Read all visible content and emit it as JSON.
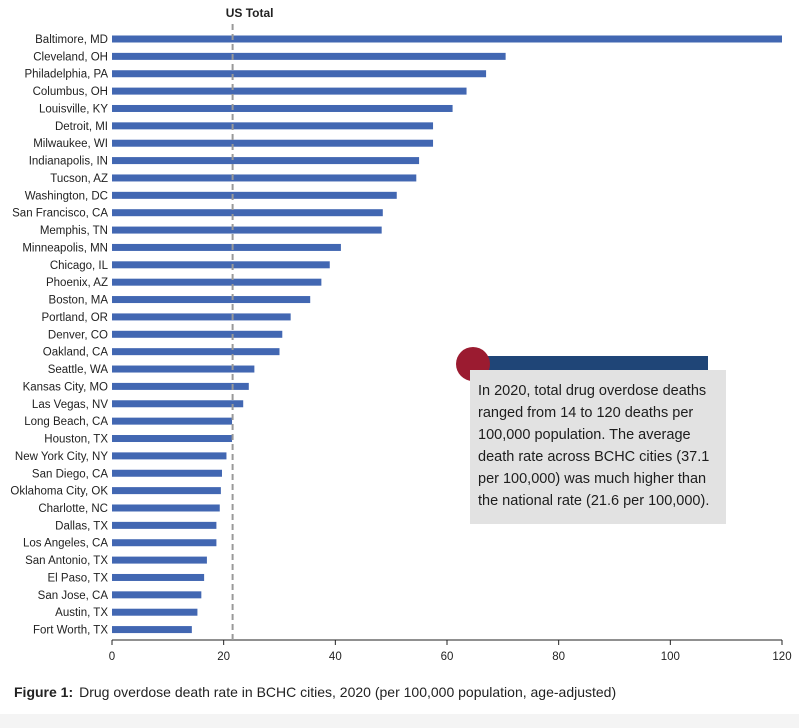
{
  "chart_data": {
    "type": "bar",
    "orientation": "horizontal",
    "categories": [
      "Baltimore, MD",
      "Cleveland, OH",
      "Philadelphia, PA",
      "Columbus, OH",
      "Louisville, KY",
      "Detroit, MI",
      "Milwaukee, WI",
      "Indianapolis, IN",
      "Tucson, AZ",
      "Washington, DC",
      "San Francisco, CA",
      "Memphis, TN",
      "Minneapolis, MN",
      "Chicago, IL",
      "Phoenix, AZ",
      "Boston, MA",
      "Portland, OR",
      "Denver, CO",
      "Oakland, CA",
      "Seattle, WA",
      "Kansas City, MO",
      "Las Vegas, NV",
      "Long Beach, CA",
      "Houston, TX",
      "New York City, NY",
      "San Diego, CA",
      "Oklahoma City, OK",
      "Charlotte, NC",
      "Dallas, TX",
      "Los Angeles, CA",
      "San Antonio, TX",
      "El Paso, TX",
      "San Jose, CA",
      "Austin, TX",
      "Fort Worth, TX"
    ],
    "values": [
      120,
      70.5,
      67,
      63.5,
      61,
      57.5,
      57.5,
      55,
      54.5,
      51,
      48.5,
      48.3,
      41,
      39,
      37.5,
      35.5,
      32,
      30.5,
      30,
      25.5,
      24.5,
      23.5,
      21.5,
      21.5,
      20.5,
      19.7,
      19.5,
      19.3,
      18.7,
      18.7,
      17,
      16.5,
      16,
      15.3,
      14.3
    ],
    "xlim": [
      0,
      120
    ],
    "xticks": [
      "0",
      "20",
      "40",
      "60",
      "80",
      "100",
      "120"
    ],
    "reference_line": {
      "label": "US Total",
      "value": 21.6
    },
    "bar_color": "#4267b2",
    "grid": false
  },
  "callout": {
    "text": "In 2020, total drug overdose deaths ranged from 14 to 120 deaths per 100,000 population. The average death rate across BCHC cities (37.1 per 100,000) was much higher than the national rate (21.6 per 100,000).",
    "accent_color": "#9b1b30",
    "bar_color": "#1f4577"
  },
  "caption": {
    "label": "Figure 1:",
    "text": "Drug overdose death rate in BCHC cities, 2020 (per 100,000 population, age-adjusted)"
  }
}
